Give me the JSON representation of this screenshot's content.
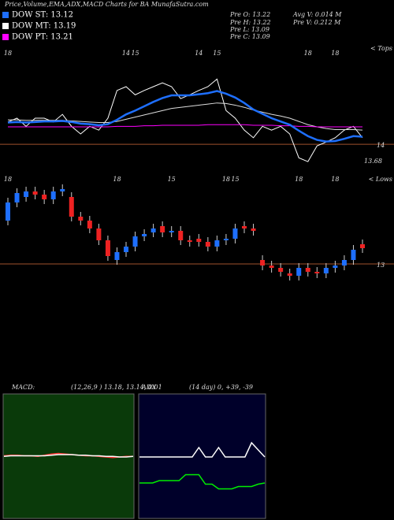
{
  "header": {
    "title": "Price,Volume,EMA,ADX,MACD Charts for BA MunafaSutra.com",
    "legend": [
      {
        "text": "DOW ST: 13.12",
        "color": "#1e6fff"
      },
      {
        "text": "DOW MT: 13.19",
        "color": "#ffffff"
      },
      {
        "text": "DOW PT: 13.21",
        "color": "#ff00ff"
      }
    ],
    "info": [
      "Pre  O: 13.22",
      "Pre  H: 13.22",
      "Pre  L: 13.09",
      "Pre  C: 13.09"
    ],
    "volume": [
      "Avg V: 0.014  M",
      "Pre  V: 0.212  M"
    ]
  },
  "chart_data": [
    {
      "type": "line",
      "categories": [
        "18",
        null,
        null,
        null,
        null,
        null,
        null,
        null,
        null,
        null,
        null,
        null,
        null,
        "14",
        "15",
        null,
        null,
        null,
        null,
        null,
        null,
        "14",
        null,
        "15",
        null,
        null,
        null,
        null,
        null,
        null,
        null,
        null,
        null,
        "18",
        null,
        null,
        "18",
        null,
        null,
        null
      ],
      "ylim": [
        13.32,
        15.35
      ],
      "hlines": [
        {
          "value": 14,
          "label": "14",
          "color": "#a0522d"
        }
      ],
      "annotations": [
        {
          "text": "13.68",
          "value": 13.68
        },
        {
          "text": "< Tops"
        }
      ],
      "series": [
        {
          "color": "#ffffff",
          "values": [
            14.41,
            14.48,
            14.33,
            14.48,
            14.48,
            14.41,
            14.55,
            14.33,
            14.19,
            14.33,
            14.26,
            14.48,
            14.99,
            15.06,
            14.91,
            14.99,
            15.06,
            15.13,
            15.06,
            14.84,
            14.91,
            14.99,
            15.06,
            15.2,
            14.62,
            14.48,
            14.26,
            14.12,
            14.33,
            14.26,
            14.33,
            14.19,
            13.75,
            13.68,
            13.97,
            14.04,
            14.12,
            14.26,
            14.33,
            14.12
          ]
        },
        {
          "color": "#dddddd",
          "values": [
            14.45,
            14.45,
            14.44,
            14.44,
            14.44,
            14.44,
            14.44,
            14.43,
            14.42,
            14.41,
            14.4,
            14.4,
            14.42,
            14.46,
            14.5,
            14.54,
            14.58,
            14.62,
            14.66,
            14.68,
            14.7,
            14.72,
            14.74,
            14.76,
            14.75,
            14.72,
            14.68,
            14.63,
            14.59,
            14.55,
            14.52,
            14.48,
            14.42,
            14.36,
            14.32,
            14.29,
            14.27,
            14.27,
            14.27,
            14.26
          ]
        },
        {
          "color": "#ff00ff",
          "values": [
            14.32,
            14.32,
            14.32,
            14.32,
            14.32,
            14.32,
            14.32,
            14.32,
            14.32,
            14.32,
            14.32,
            14.32,
            14.33,
            14.33,
            14.33,
            14.34,
            14.34,
            14.35,
            14.35,
            14.35,
            14.35,
            14.35,
            14.36,
            14.36,
            14.36,
            14.36,
            14.36,
            14.35,
            14.35,
            14.35,
            14.34,
            14.34,
            14.33,
            14.33,
            14.32,
            14.32,
            14.32,
            14.32,
            14.32,
            14.32
          ]
        },
        {
          "color": "#1e6fff",
          "values": [
            14.4,
            14.41,
            14.4,
            14.41,
            14.42,
            14.42,
            14.43,
            14.41,
            14.38,
            14.37,
            14.35,
            14.37,
            14.45,
            14.55,
            14.62,
            14.7,
            14.78,
            14.85,
            14.9,
            14.9,
            14.9,
            14.92,
            14.94,
            14.98,
            14.93,
            14.86,
            14.76,
            14.64,
            14.56,
            14.48,
            14.42,
            14.36,
            14.25,
            14.15,
            14.08,
            14.05,
            14.06,
            14.1,
            14.15,
            14.14
          ]
        }
      ]
    },
    {
      "type": "candlestick",
      "categories": [
        "18",
        null,
        null,
        null,
        null,
        null,
        null,
        null,
        null,
        null,
        null,
        null,
        "18",
        null,
        null,
        null,
        null,
        null,
        "15",
        null,
        null,
        null,
        null,
        null,
        "18",
        "15",
        null,
        null,
        null,
        null,
        null,
        null,
        "18",
        null,
        null,
        null,
        "18",
        null,
        null,
        null
      ],
      "ylim": [
        12.55,
        14.1
      ],
      "hlines": [
        {
          "value": 13,
          "label": "13",
          "color": "#a0522d"
        }
      ],
      "annotations": [
        {
          "text": "< Lows"
        }
      ],
      "up_color": "#1e6fff",
      "down_color": "#ee2222",
      "open": [
        13.55,
        13.78,
        13.85,
        13.92,
        13.88,
        13.82,
        13.92,
        13.85,
        13.6,
        13.55,
        13.45,
        13.3,
        13.05,
        13.15,
        13.22,
        13.35,
        13.4,
        13.48,
        13.4,
        13.42,
        13.3,
        13.32,
        13.28,
        13.22,
        13.3,
        13.32,
        13.48,
        13.45,
        13.05,
        12.98,
        12.95,
        12.88,
        12.85,
        12.95,
        12.9,
        12.88,
        12.95,
        12.98,
        13.05,
        13.25
      ],
      "high": [
        13.84,
        13.96,
        13.98,
        13.98,
        13.94,
        13.98,
        14.01,
        13.91,
        13.66,
        13.61,
        13.51,
        13.36,
        13.21,
        13.28,
        13.41,
        13.44,
        13.51,
        13.54,
        13.48,
        13.48,
        13.36,
        13.38,
        13.34,
        13.36,
        13.38,
        13.51,
        13.54,
        13.51,
        13.11,
        13.04,
        13.01,
        12.94,
        13.01,
        13.01,
        12.96,
        13.01,
        13.04,
        13.11,
        13.24,
        13.31
      ],
      "low": [
        13.49,
        13.72,
        13.79,
        13.82,
        13.76,
        13.76,
        13.86,
        13.54,
        13.49,
        13.39,
        13.24,
        13.04,
        12.99,
        13.09,
        13.16,
        13.29,
        13.34,
        13.34,
        13.34,
        13.24,
        13.22,
        13.22,
        13.16,
        13.16,
        13.24,
        13.26,
        13.39,
        13.36,
        12.92,
        12.89,
        12.84,
        12.79,
        12.79,
        12.84,
        12.82,
        12.82,
        12.89,
        12.92,
        12.99,
        13.14
      ],
      "close": [
        13.78,
        13.9,
        13.92,
        13.88,
        13.82,
        13.92,
        13.95,
        13.6,
        13.55,
        13.45,
        13.3,
        13.1,
        13.15,
        13.22,
        13.35,
        13.38,
        13.45,
        13.4,
        13.42,
        13.3,
        13.28,
        13.28,
        13.22,
        13.3,
        13.32,
        13.45,
        13.45,
        13.42,
        12.98,
        12.95,
        12.9,
        12.85,
        12.95,
        12.9,
        12.88,
        12.95,
        12.98,
        13.05,
        13.18,
        13.2
      ]
    },
    {
      "type": "line",
      "title": "MACD:",
      "subtitle": "(12,26,9 ) 13.18, 13.14, 0.01",
      "ylim": [
        -1,
        1
      ],
      "background": "#0a3a0a",
      "series": [
        {
          "color": "#ff3333",
          "values": [
            0.02,
            0.03,
            0.03,
            0.02,
            0.02,
            0.01,
            0.03,
            0.05,
            0.06,
            0.05,
            0.04,
            0.03,
            0.02,
            0.02,
            0.01,
            0,
            -0.01,
            0,
            0.01,
            0.01
          ]
        },
        {
          "color": "#ffffff",
          "values": [
            0.01,
            0.02,
            0.02,
            0.02,
            0.02,
            0.02,
            0.02,
            0.03,
            0.04,
            0.04,
            0.04,
            0.03,
            0.03,
            0.02,
            0.02,
            0.01,
            0.01,
            0,
            0,
            0.01
          ]
        }
      ]
    },
    {
      "type": "line",
      "title": "ADX",
      "subtitle": "(14 day) 0, +39, -39",
      "ylim": [
        0,
        100
      ],
      "background": "#00002a",
      "series": [
        {
          "color": "#ffffff",
          "values": [
            50,
            50,
            50,
            50,
            50,
            50,
            50,
            50,
            50,
            58,
            50,
            50,
            58,
            50,
            50,
            50,
            50,
            62,
            56,
            50
          ]
        },
        {
          "color": "#00ee00",
          "values": [
            28,
            28,
            28,
            30,
            30,
            30,
            30,
            35,
            35,
            35,
            27,
            27,
            23,
            23,
            23,
            25,
            25,
            25,
            27,
            28
          ]
        }
      ]
    }
  ]
}
